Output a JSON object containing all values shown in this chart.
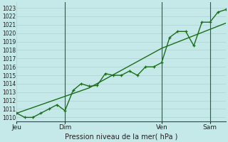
{
  "background_color": "#c5e8e8",
  "grid_color": "#b0d0d0",
  "line_color": "#1a6e1a",
  "ylabel_text": "Pression niveau de la mer( hPa )",
  "yticks": [
    1010,
    1011,
    1012,
    1013,
    1014,
    1015,
    1016,
    1017,
    1018,
    1019,
    1020,
    1021,
    1022,
    1023
  ],
  "ylim": [
    1009.5,
    1023.7
  ],
  "xtick_labels": [
    "Jeu",
    "Dim",
    "Ven",
    "Sam"
  ],
  "xtick_positions": [
    0,
    3,
    9,
    12
  ],
  "vline_positions": [
    3,
    9,
    12
  ],
  "line1_x": [
    0,
    0.5,
    1.0,
    1.5,
    2.0,
    2.5,
    3.0,
    3.5,
    4.0,
    4.5,
    5.0,
    5.5,
    6.0,
    6.5,
    7.0,
    7.5,
    8.0,
    8.5,
    9.0,
    9.5,
    10.0,
    10.5,
    11.0,
    11.5,
    12.0,
    12.5,
    13.0
  ],
  "line1_y": [
    1010.5,
    1010.0,
    1010.0,
    1010.5,
    1011.0,
    1011.5,
    1010.8,
    1013.2,
    1014.0,
    1013.7,
    1013.8,
    1015.2,
    1015.0,
    1015.0,
    1015.5,
    1015.0,
    1016.0,
    1016.0,
    1016.5,
    1019.5,
    1020.2,
    1020.2,
    1018.5,
    1021.3,
    1021.3,
    1022.5,
    1022.8
  ],
  "line2_x": [
    0,
    4.5,
    9,
    13
  ],
  "line2_y": [
    1010.5,
    1013.5,
    1018.2,
    1021.2
  ],
  "figsize": [
    3.2,
    2.0
  ],
  "dpi": 100
}
